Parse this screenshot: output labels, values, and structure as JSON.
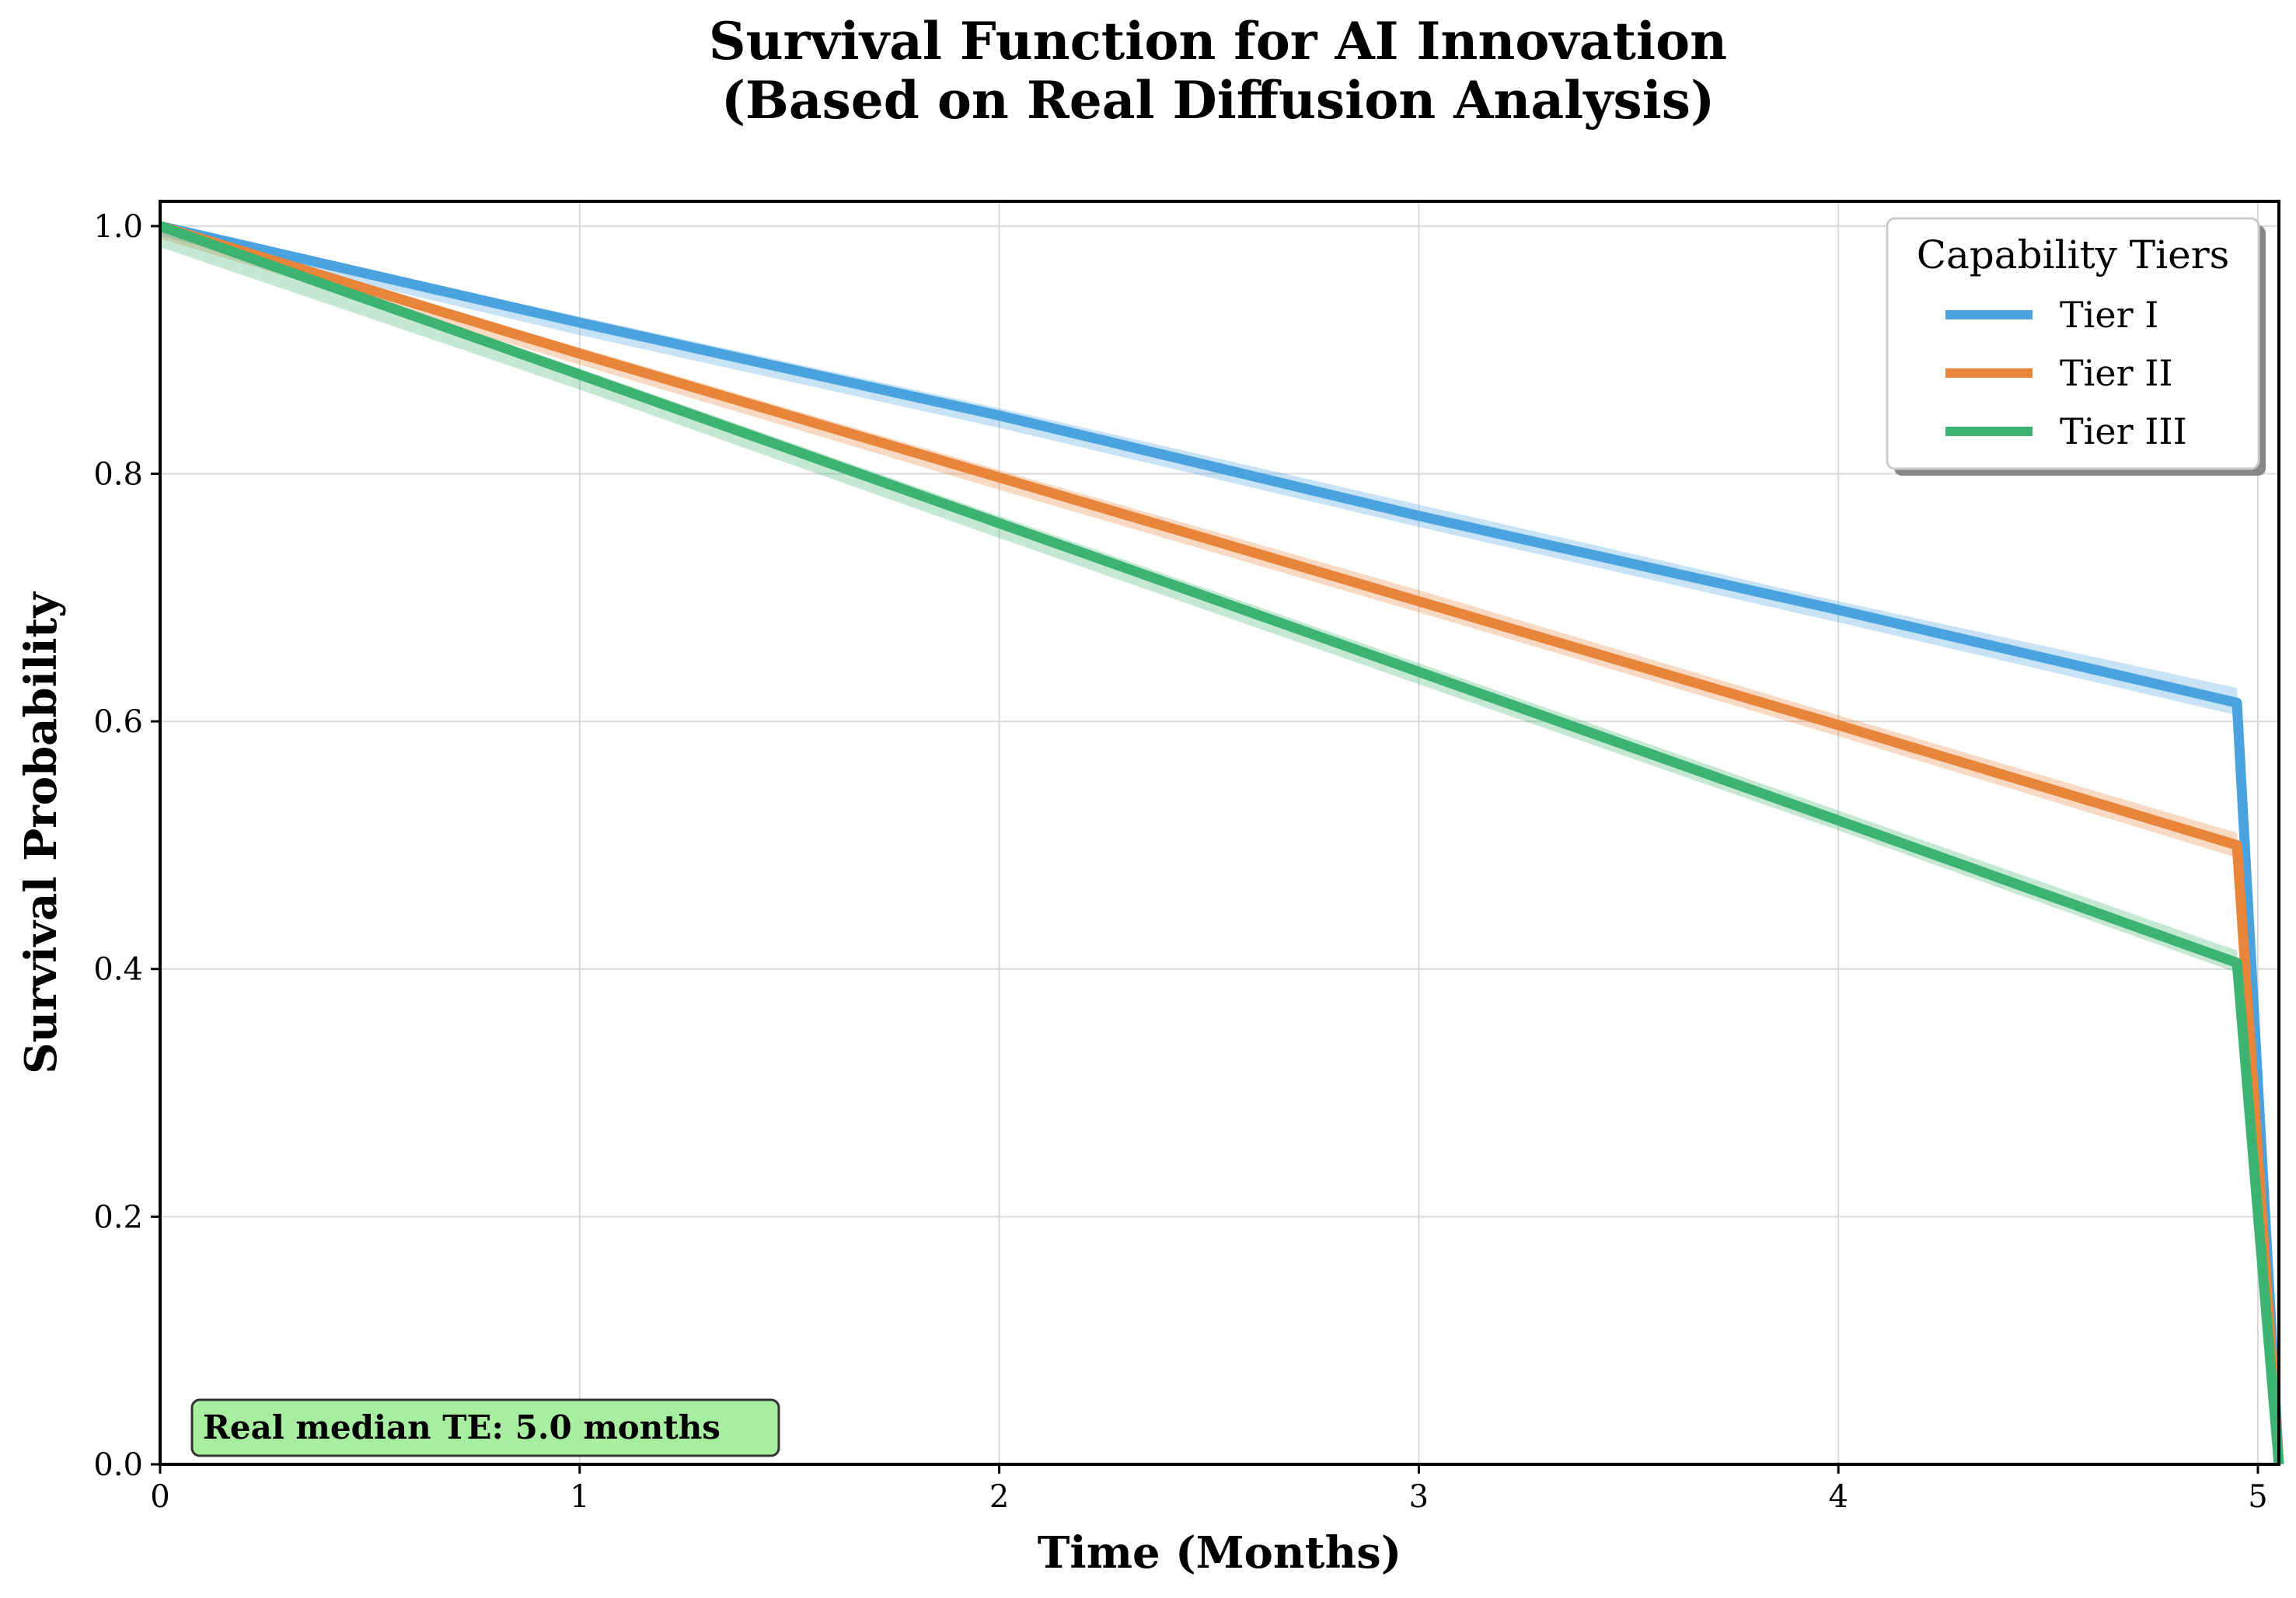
{
  "chart_data": {
    "type": "line",
    "title_line1": "Survival Function for AI Innovation",
    "title_line2": "(Based on Real Diffusion Analysis)",
    "xlabel": "Time (Months)",
    "ylabel": "Survival Probability",
    "xlim": [
      0,
      5.05
    ],
    "ylim": [
      0,
      1.02
    ],
    "xticks": [
      0,
      1,
      2,
      3,
      4,
      5
    ],
    "xtick_labels": [
      "0",
      "1",
      "2",
      "3",
      "4",
      "5"
    ],
    "yticks": [
      0.0,
      0.2,
      0.4,
      0.6,
      0.8,
      1.0
    ],
    "ytick_labels": [
      "0.0",
      "0.2",
      "0.4",
      "0.6",
      "0.8",
      "1.0"
    ],
    "grid": true,
    "legend": {
      "title": "Capability Tiers",
      "placement": "top-right"
    },
    "series": [
      {
        "name": "Tier I",
        "color": "#4aa3df",
        "x": [
          0,
          1,
          2,
          3,
          4,
          4.95,
          5.05
        ],
        "y": [
          1.0,
          0.922,
          0.847,
          0.766,
          0.69,
          0.615,
          0.0
        ],
        "ci_upper": [
          1.0,
          0.927,
          0.853,
          0.775,
          0.697,
          0.627,
          0.0
        ],
        "ci_lower": [
          0.992,
          0.912,
          0.837,
          0.757,
          0.68,
          0.605,
          0.0
        ]
      },
      {
        "name": "Tier II",
        "color": "#e8853a",
        "x": [
          0,
          1,
          2,
          3,
          4,
          4.95,
          5.05
        ],
        "y": [
          1.0,
          0.897,
          0.797,
          0.697,
          0.597,
          0.5,
          0.0
        ],
        "ci_upper": [
          1.0,
          0.902,
          0.803,
          0.706,
          0.605,
          0.51,
          0.0
        ],
        "ci_lower": [
          0.99,
          0.888,
          0.787,
          0.688,
          0.588,
          0.49,
          0.0
        ]
      },
      {
        "name": "Tier III",
        "color": "#3cb371",
        "x": [
          0,
          1,
          2,
          3,
          4,
          4.95,
          5.05
        ],
        "y": [
          1.0,
          0.88,
          0.76,
          0.64,
          0.52,
          0.405,
          0.0
        ],
        "ci_upper": [
          1.0,
          0.885,
          0.766,
          0.647,
          0.528,
          0.415,
          0.0
        ],
        "ci_lower": [
          0.983,
          0.868,
          0.748,
          0.63,
          0.512,
          0.397,
          0.0
        ]
      }
    ],
    "annotation": {
      "text": "Real median TE: 5.0 months",
      "background": "#a8eea0"
    }
  }
}
